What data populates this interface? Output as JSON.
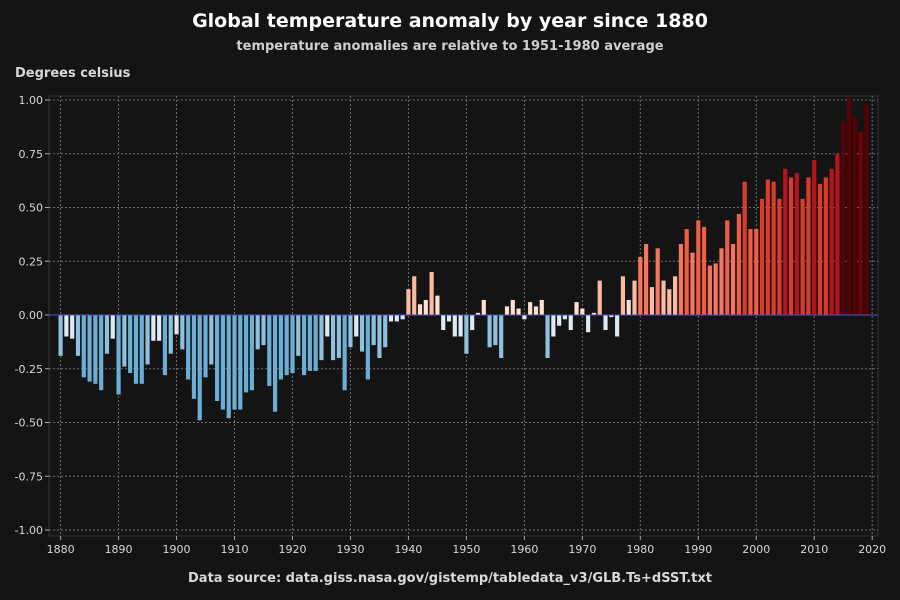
{
  "chart_data": {
    "type": "bar",
    "title": "Global temperature anomaly by year since 1880",
    "subtitle": "temperature anomalies are relative to 1951-1980 average",
    "ylabel": "Degrees celsius",
    "source": "Data source: data.giss.nasa.gov/gistemp/tabledata_v3/GLB.Ts+dSST.txt",
    "xlim": [
      1878,
      2021
    ],
    "ylim": [
      -1.0,
      1.0
    ],
    "x_ticks": [
      1880,
      1890,
      1900,
      1910,
      1920,
      1930,
      1940,
      1950,
      1960,
      1970,
      1980,
      1990,
      2000,
      2010,
      2020
    ],
    "y_ticks": [
      -1.0,
      -0.75,
      -0.5,
      -0.25,
      0.0,
      0.25,
      0.5,
      0.75,
      1.0
    ],
    "y_tick_labels": [
      "-1.00",
      "-0.75",
      "-0.50",
      "-0.25",
      "0.00",
      "0.25",
      "0.50",
      "0.75",
      "1.00"
    ],
    "grid": true,
    "x_start": 1880,
    "values": [
      -0.19,
      -0.1,
      -0.11,
      -0.19,
      -0.29,
      -0.31,
      -0.32,
      -0.35,
      -0.18,
      -0.11,
      -0.37,
      -0.24,
      -0.27,
      -0.32,
      -0.32,
      -0.23,
      -0.12,
      -0.12,
      -0.28,
      -0.18,
      -0.09,
      -0.16,
      -0.3,
      -0.39,
      -0.49,
      -0.29,
      -0.23,
      -0.4,
      -0.44,
      -0.48,
      -0.44,
      -0.44,
      -0.36,
      -0.35,
      -0.16,
      -0.14,
      -0.33,
      -0.45,
      -0.3,
      -0.28,
      -0.27,
      -0.19,
      -0.28,
      -0.26,
      -0.26,
      -0.21,
      -0.1,
      -0.21,
      -0.2,
      -0.35,
      -0.15,
      -0.1,
      -0.17,
      -0.3,
      -0.14,
      -0.2,
      -0.15,
      -0.03,
      -0.03,
      -0.02,
      0.12,
      0.18,
      0.05,
      0.07,
      0.2,
      0.09,
      -0.07,
      -0.03,
      -0.1,
      -0.1,
      -0.18,
      -0.07,
      0.01,
      0.07,
      -0.15,
      -0.14,
      -0.2,
      0.04,
      0.07,
      0.03,
      -0.02,
      0.06,
      0.04,
      0.07,
      -0.2,
      -0.1,
      -0.05,
      -0.02,
      -0.07,
      0.06,
      0.03,
      -0.08,
      0.01,
      0.16,
      -0.07,
      -0.01,
      -0.1,
      0.18,
      0.07,
      0.16,
      0.27,
      0.33,
      0.13,
      0.31,
      0.16,
      0.12,
      0.18,
      0.33,
      0.4,
      0.29,
      0.44,
      0.41,
      0.23,
      0.24,
      0.31,
      0.44,
      0.33,
      0.47,
      0.62,
      0.4,
      0.4,
      0.54,
      0.63,
      0.62,
      0.54,
      0.68,
      0.64,
      0.66,
      0.54,
      0.64,
      0.72,
      0.61,
      0.64,
      0.68,
      0.75,
      0.9,
      1.01,
      0.92,
      0.85,
      0.98
    ]
  }
}
